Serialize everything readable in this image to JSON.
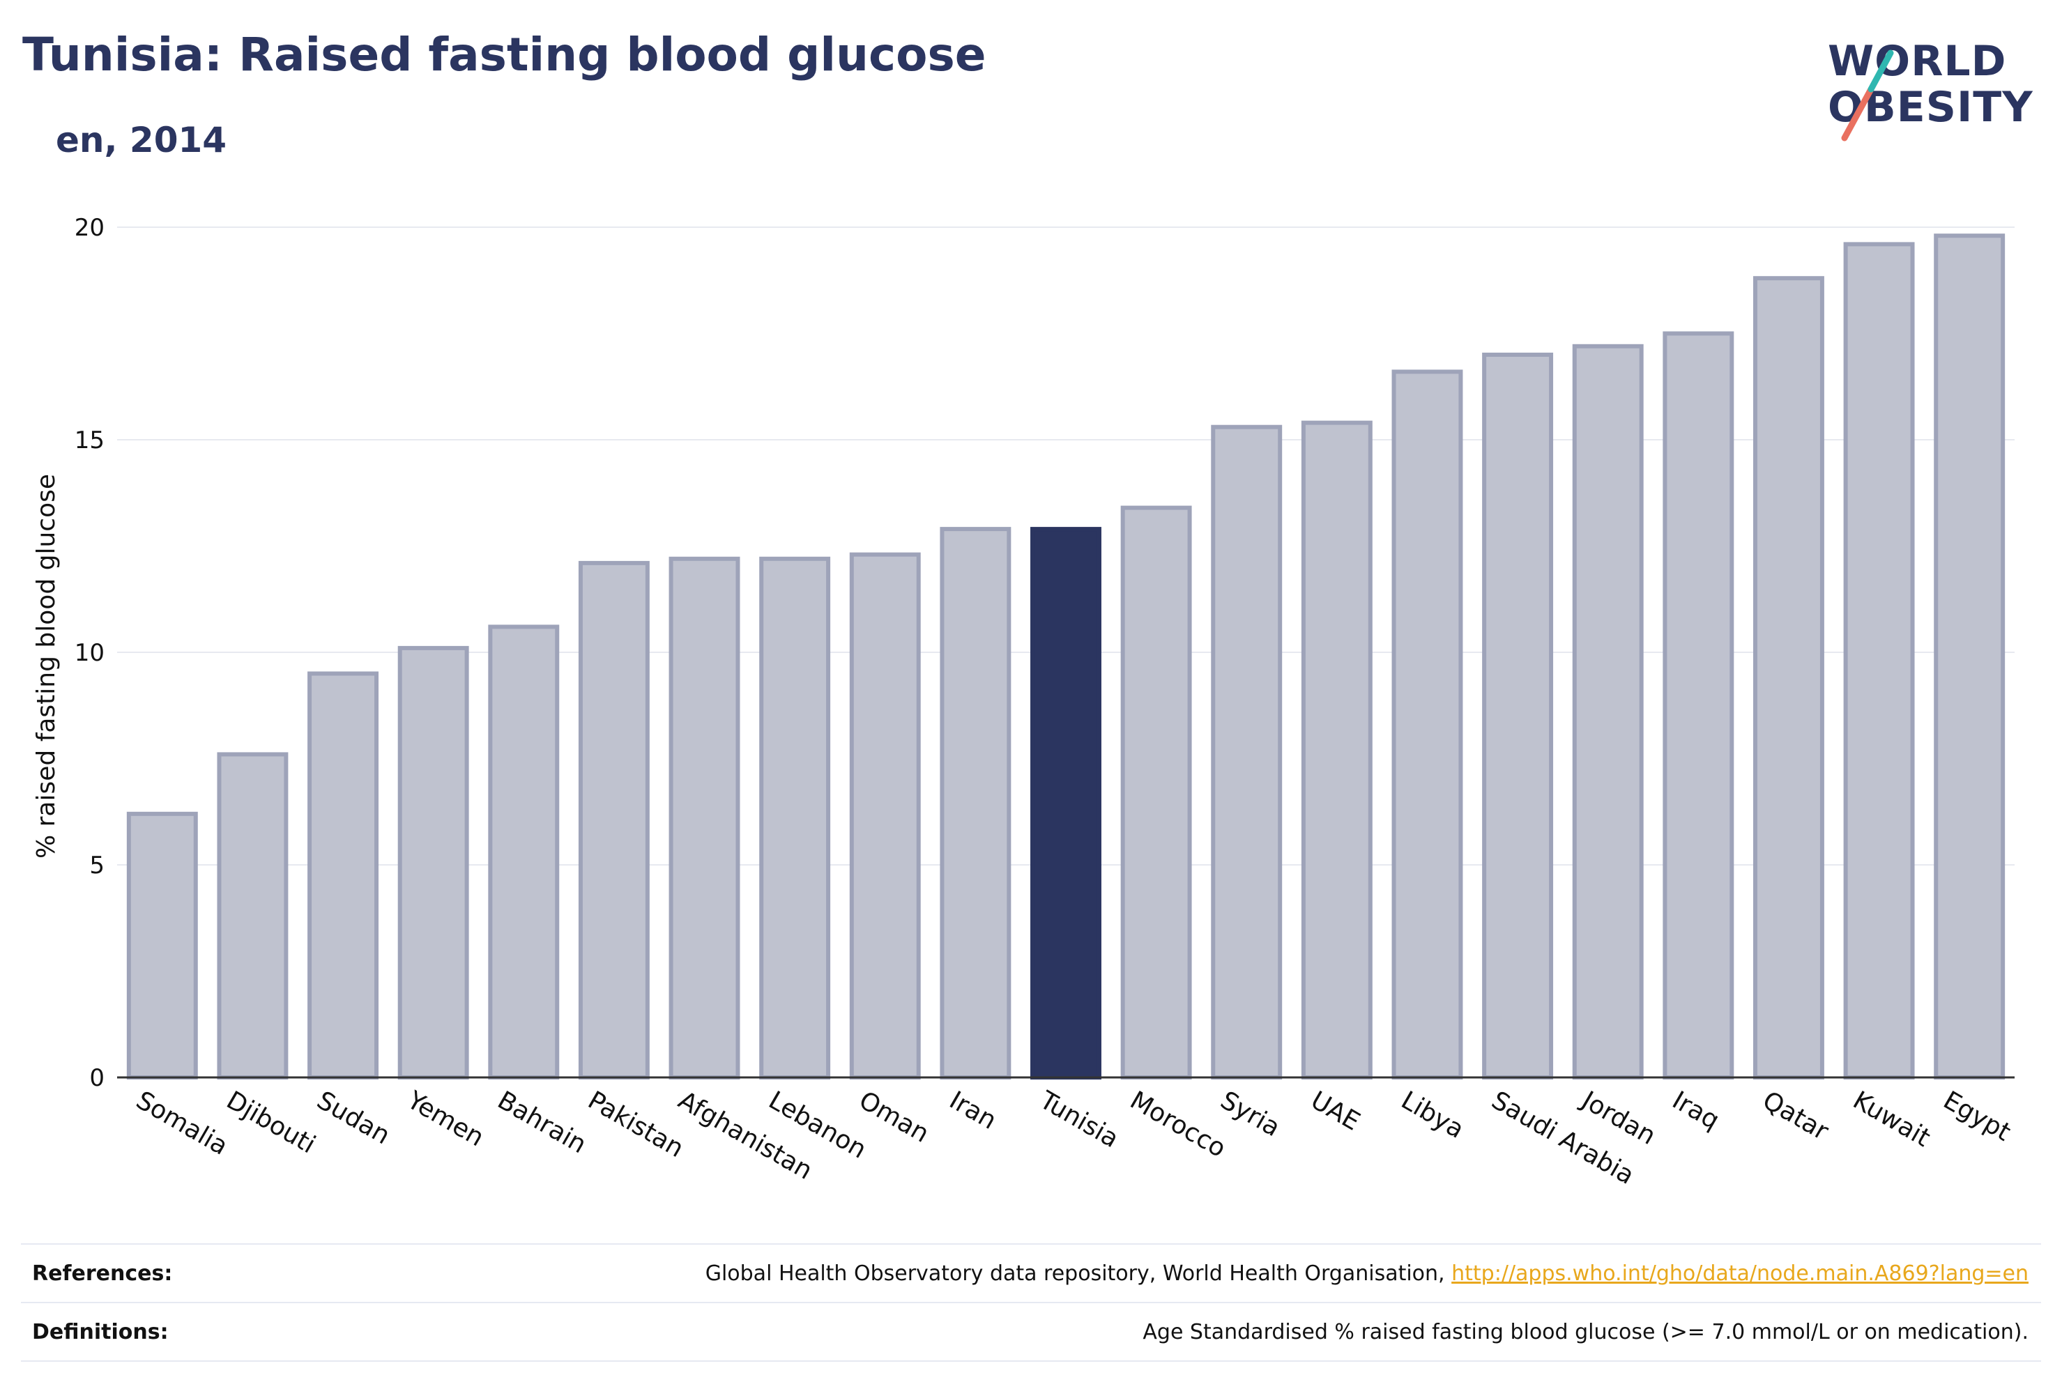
{
  "header": {
    "title": "Tunisia: Raised fasting blood glucose",
    "subtitle": "en, 2014"
  },
  "logo": {
    "line1": "WORLD",
    "line2": "OBESITY"
  },
  "colors": {
    "highlight": "#2b3560",
    "bar_fill": "#bfc2cf",
    "bar_stroke": "#9ea3b9",
    "logo_teal": "#2fb7b0",
    "logo_coral": "#e9705f",
    "link": "#e8a71c"
  },
  "chart_data": {
    "type": "bar",
    "categories": [
      "Somalia",
      "Djibouti",
      "Sudan",
      "Yemen",
      "Bahrain",
      "Pakistan",
      "Afghanistan",
      "Lebanon",
      "Oman",
      "Iran",
      "Tunisia",
      "Morocco",
      "Syria",
      "UAE",
      "Libya",
      "Saudi Arabia",
      "Jordan",
      "Iraq",
      "Qatar",
      "Kuwait",
      "Egypt"
    ],
    "values": [
      6.2,
      7.6,
      9.5,
      10.1,
      10.6,
      12.1,
      12.2,
      12.2,
      12.3,
      12.9,
      12.9,
      13.4,
      15.3,
      15.4,
      16.6,
      17.0,
      17.2,
      17.5,
      18.8,
      19.6,
      19.8
    ],
    "highlight": "Tunisia",
    "ylabel": "% raised fasting blood glucose",
    "xlabel": "",
    "ylim": [
      0,
      20
    ],
    "yticks": [
      0,
      5,
      10,
      15,
      20
    ],
    "grid": true
  },
  "footer": {
    "references_label": "References:",
    "references_text": "Global Health Observatory data repository, World Health Organisation,",
    "references_link": "http://apps.who.int/gho/data/node.main.A869?lang=en",
    "definitions_label": "Definitions:",
    "definitions_text": "Age Standardised % raised fasting blood glucose (>= 7.0 mmol/L or on medication)."
  }
}
